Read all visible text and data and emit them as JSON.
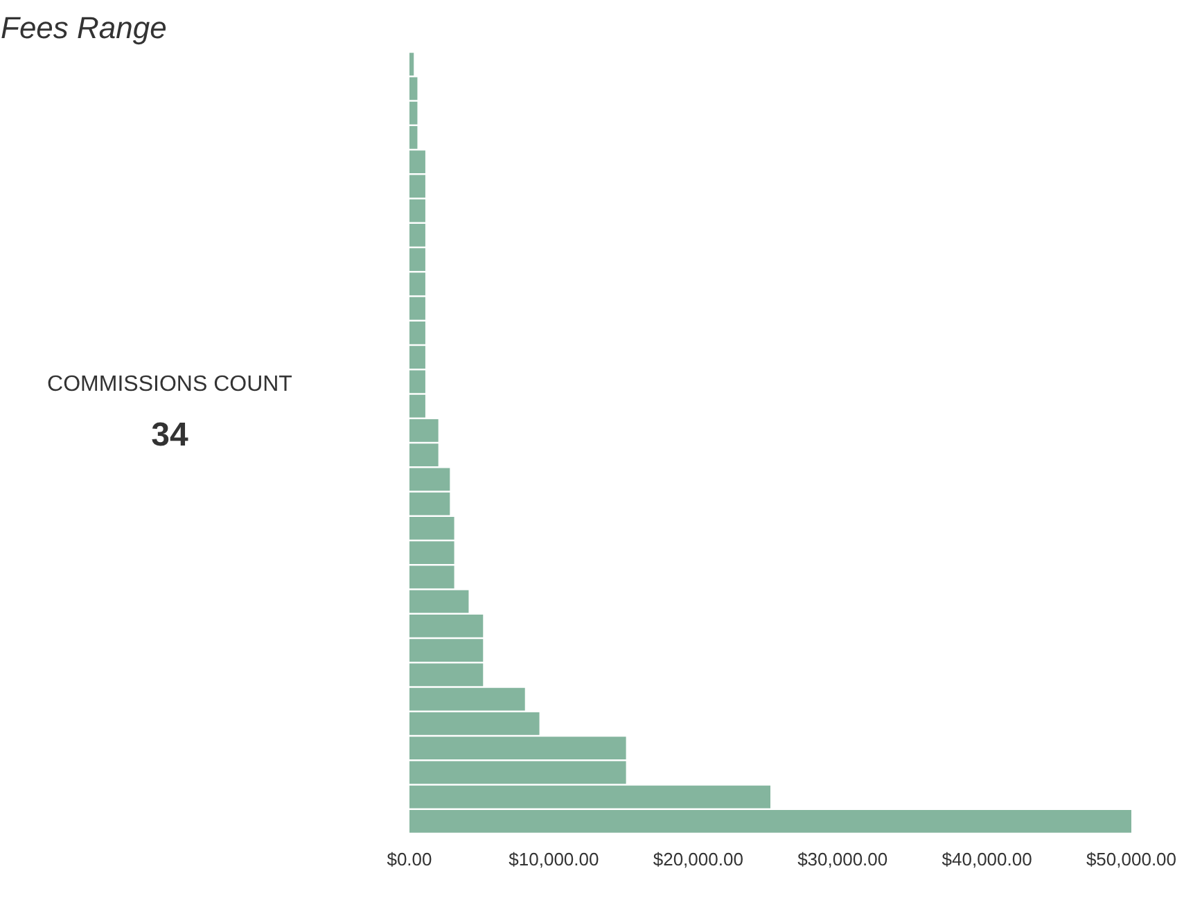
{
  "chart_data": {
    "type": "bar",
    "orientation": "horizontal",
    "title": "Fees Range",
    "categories": [
      null,
      null,
      null,
      null,
      null,
      null,
      null,
      null,
      null,
      null,
      null,
      null,
      null,
      null,
      null,
      null,
      null,
      null,
      null,
      null,
      null,
      null,
      null,
      null,
      null,
      null,
      null,
      null,
      null,
      null,
      null,
      null
    ],
    "values": [
      300,
      550,
      550,
      550,
      1100,
      1100,
      1100,
      1100,
      1100,
      1100,
      1100,
      1100,
      1100,
      1100,
      1100,
      2000,
      2000,
      2800,
      2800,
      3100,
      3100,
      3100,
      4100,
      5100,
      5100,
      5100,
      8000,
      9000,
      15000,
      15000,
      25000,
      50000
    ],
    "color": "#84b59e",
    "xlim": [
      0,
      50000
    ],
    "xticks": [
      {
        "value": 0,
        "label": "$0.00"
      },
      {
        "value": 10000,
        "label": "$10,000.00"
      },
      {
        "value": 20000,
        "label": "$20,000.00"
      },
      {
        "value": 30000,
        "label": "$30,000.00"
      },
      {
        "value": 40000,
        "label": "$40,000.00"
      },
      {
        "value": 50000,
        "label": "$50,000.00"
      }
    ],
    "grid": false,
    "tick_labels": "x",
    "annotations": [
      "COMMISSIONS COUNT",
      "34"
    ]
  }
}
